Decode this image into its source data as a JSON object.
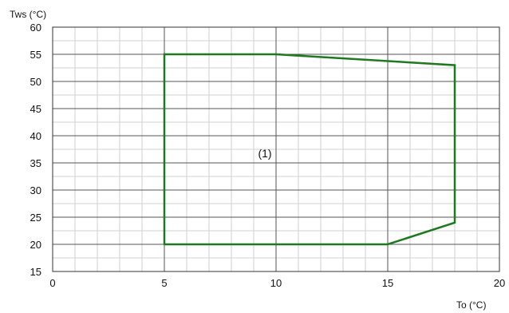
{
  "chart_data": {
    "type": "line",
    "title": "",
    "xlabel": "To (°C)",
    "ylabel": "Tws (°C)",
    "xlim": [
      0,
      20
    ],
    "ylim": [
      15,
      60
    ],
    "x_ticks": [
      0,
      5,
      10,
      15,
      20
    ],
    "y_ticks": [
      15,
      20,
      25,
      30,
      35,
      40,
      45,
      50,
      55,
      60
    ],
    "grid": true,
    "series": [
      {
        "color": "#1f7a1f",
        "points": [
          {
            "x": 5,
            "y": 20
          },
          {
            "x": 5,
            "y": 55
          },
          {
            "x": 10,
            "y": 55
          },
          {
            "x": 18,
            "y": 53
          },
          {
            "x": 18,
            "y": 24
          },
          {
            "x": 15,
            "y": 20
          },
          {
            "x": 5,
            "y": 20
          }
        ]
      }
    ],
    "annotations": [
      {
        "text": "(1)",
        "x": 9.5,
        "y": 36
      }
    ]
  }
}
